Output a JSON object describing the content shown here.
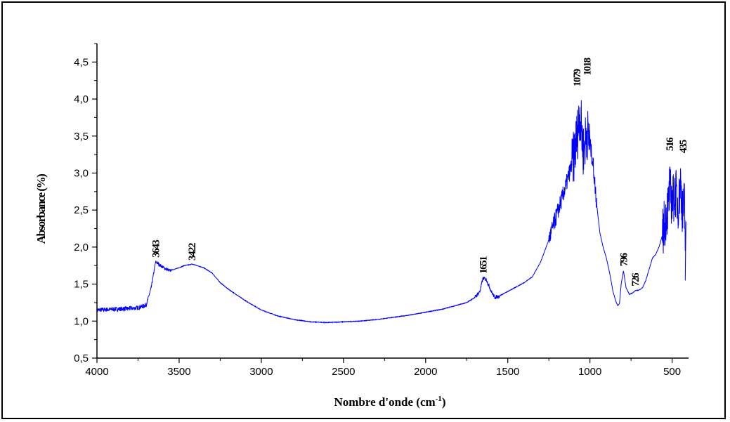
{
  "chart_data": {
    "type": "line",
    "xlabel": "Nombre d'onde (cm",
    "xlabel_sup": "-1",
    "xlabel_end": ")",
    "ylabel": "Absorbance (%)",
    "xlim": [
      4000,
      400
    ],
    "ylim": [
      0.5,
      4.75
    ],
    "x_ticks": [
      4000,
      3500,
      3000,
      2500,
      2000,
      1500,
      1000,
      500
    ],
    "x_tick_labels": [
      "4000",
      "3500",
      "3000",
      "2500",
      "2000",
      "1500",
      "1000",
      "500"
    ],
    "y_ticks": [
      0.5,
      1.0,
      1.5,
      2.0,
      2.5,
      3.0,
      3.5,
      4.0,
      4.5
    ],
    "y_tick_labels": [
      "0,5",
      "1,0",
      "1,5",
      "2,0",
      "2,5",
      "3,0",
      "3,5",
      "4,0",
      "4,5"
    ],
    "line_color": "#0000ff",
    "grid": false,
    "series": [
      {
        "x": [
          4000,
          3900,
          3800,
          3750,
          3700,
          3670,
          3643,
          3600,
          3560,
          3500,
          3470,
          3440,
          3422,
          3390,
          3350,
          3300,
          3250,
          3200,
          3100,
          3000,
          2900,
          2800,
          2700,
          2600,
          2500,
          2400,
          2300,
          2200,
          2100,
          2000,
          1950,
          1900,
          1850,
          1800,
          1750,
          1700,
          1670,
          1651,
          1630,
          1600,
          1580,
          1560,
          1500,
          1450,
          1400,
          1350,
          1300,
          1250,
          1200,
          1150,
          1100,
          1079,
          1060,
          1040,
          1018,
          1000,
          980,
          960,
          940,
          920,
          900,
          880,
          860,
          840,
          830,
          820,
          810,
          796,
          780,
          760,
          740,
          726,
          700,
          680,
          660,
          640,
          620,
          600,
          580,
          560,
          540,
          520,
          516,
          500,
          480,
          460,
          450,
          435,
          425,
          420,
          415
        ],
        "y": [
          1.15,
          1.16,
          1.17,
          1.18,
          1.22,
          1.45,
          1.8,
          1.73,
          1.68,
          1.72,
          1.75,
          1.76,
          1.77,
          1.75,
          1.72,
          1.65,
          1.52,
          1.43,
          1.28,
          1.15,
          1.07,
          1.02,
          0.99,
          0.98,
          0.99,
          1.0,
          1.02,
          1.05,
          1.08,
          1.12,
          1.14,
          1.16,
          1.19,
          1.22,
          1.25,
          1.32,
          1.4,
          1.58,
          1.56,
          1.4,
          1.32,
          1.33,
          1.4,
          1.46,
          1.52,
          1.6,
          1.8,
          2.1,
          2.45,
          2.8,
          3.2,
          3.5,
          3.8,
          3.3,
          3.55,
          3.4,
          3.1,
          2.6,
          2.2,
          2.0,
          1.85,
          1.65,
          1.4,
          1.25,
          1.21,
          1.24,
          1.5,
          1.68,
          1.45,
          1.36,
          1.38,
          1.41,
          1.42,
          1.45,
          1.55,
          1.7,
          1.85,
          1.9,
          2.0,
          2.15,
          2.4,
          2.6,
          2.8,
          2.6,
          2.75,
          2.55,
          2.9,
          2.45,
          2.6,
          2.1,
          2.05
        ]
      }
    ],
    "peaks": [
      {
        "label": "3643",
        "x": 3643,
        "y": 1.84
      },
      {
        "label": "3422",
        "x": 3422,
        "y": 1.8
      },
      {
        "label": "1651",
        "x": 1651,
        "y": 1.62
      },
      {
        "label": "1079",
        "x": 1079,
        "y": 4.15
      },
      {
        "label": "1018",
        "x": 1018,
        "y": 4.3
      },
      {
        "label": "796",
        "x": 796,
        "y": 1.72
      },
      {
        "label": "726",
        "x": 726,
        "y": 1.45
      },
      {
        "label": "516",
        "x": 516,
        "y": 3.28
      },
      {
        "label": "435",
        "x": 435,
        "y": 3.25
      }
    ]
  }
}
